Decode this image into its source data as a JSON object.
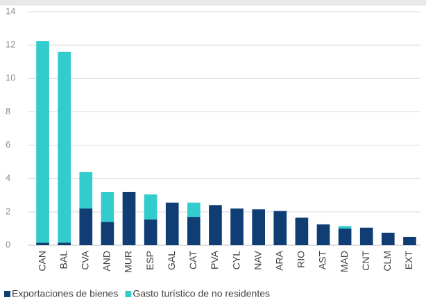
{
  "chart_data": {
    "type": "stacked_bar",
    "categories": [
      "CAN",
      "BAL",
      "CVA",
      "AND",
      "MUR",
      "ESP",
      "GAL",
      "CAT",
      "PVA",
      "CYL",
      "NAV",
      "ARA",
      "RIO",
      "AST",
      "MAD",
      "CNT",
      "CLM",
      "EXT"
    ],
    "series": [
      {
        "name": "Exportaciones de bienes",
        "color": "#0f3d74",
        "values": [
          0.15,
          0.15,
          2.2,
          1.4,
          3.2,
          1.55,
          2.55,
          1.7,
          2.4,
          2.2,
          2.15,
          2.05,
          1.65,
          1.25,
          1.0,
          1.05,
          0.75,
          0.5
        ]
      },
      {
        "name": "Gasto turístico de no residentes",
        "color": "#33cccc",
        "values": [
          12.1,
          11.45,
          2.2,
          1.8,
          0,
          1.5,
          0,
          0.85,
          0,
          0,
          0,
          0,
          0,
          0,
          0.15,
          0,
          0,
          0
        ]
      }
    ],
    "ylim": [
      0,
      14
    ],
    "yticks": [
      0,
      2,
      4,
      6,
      8,
      10,
      12,
      14
    ],
    "grid": true
  }
}
